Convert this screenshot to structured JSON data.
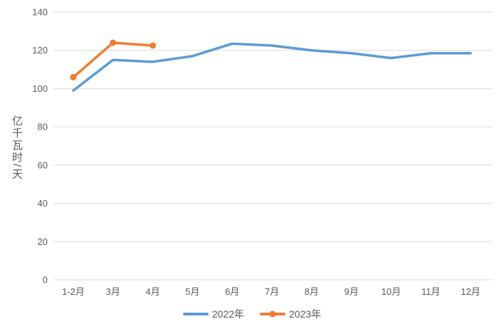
{
  "chart_data": {
    "type": "line",
    "categories": [
      "1-2月",
      "3月",
      "4月",
      "5月",
      "6月",
      "7月",
      "8月",
      "9月",
      "10月",
      "11月",
      "12月"
    ],
    "series": [
      {
        "name": "2022年",
        "color": "#5B9BD5",
        "marker": false,
        "values": [
          99,
          115,
          114,
          117,
          123.5,
          122.5,
          120,
          118.5,
          116,
          118.5,
          118.5
        ]
      },
      {
        "name": "2023年",
        "color": "#ED7D31",
        "marker": true,
        "values": [
          106,
          124,
          122.5
        ]
      }
    ],
    "title": "",
    "xlabel": "",
    "ylabel": "亿千瓦时/天",
    "ylim": [
      0,
      140
    ],
    "yticks": [
      0,
      20,
      40,
      60,
      80,
      100,
      120,
      140
    ],
    "grid": true,
    "legend_position": "bottom",
    "axis_text_color": "#595959",
    "gridline_color": "#D9D9D9",
    "background_color": "#FFFFFF"
  }
}
